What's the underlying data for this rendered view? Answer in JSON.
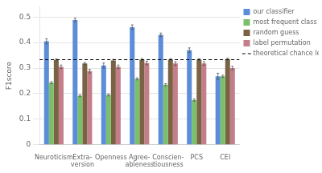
{
  "chart_data": {
    "type": "bar",
    "ylabel": "F1score",
    "categories": [
      "Neuroticism",
      "Extra-\nversion",
      "Openness",
      "Agree-\nableness",
      "Conscien-\ntiousness",
      "PCS",
      "CEI"
    ],
    "series": [
      {
        "name": "our classifier",
        "color": "#5b8dd9",
        "values": [
          0.405,
          0.488,
          0.31,
          0.46,
          0.43,
          0.37,
          0.268
        ],
        "errors": [
          0.01,
          0.007,
          0.01,
          0.009,
          0.007,
          0.009,
          0.012
        ]
      },
      {
        "name": "most frequent class",
        "color": "#7bbf6a",
        "values": [
          0.243,
          0.192,
          0.195,
          0.258,
          0.235,
          0.175,
          0.268
        ],
        "errors": [
          0.004,
          0.004,
          0.004,
          0.004,
          0.004,
          0.004,
          0.004
        ]
      },
      {
        "name": "random guess",
        "color": "#7a6244",
        "values": [
          0.332,
          0.318,
          0.33,
          0.333,
          0.333,
          0.333,
          0.335
        ],
        "errors": [
          0.004,
          0.004,
          0.004,
          0.004,
          0.004,
          0.004,
          0.004
        ]
      },
      {
        "name": "label permutation",
        "color": "#c47e8a",
        "values": [
          0.305,
          0.288,
          0.305,
          0.32,
          0.318,
          0.318,
          0.3
        ],
        "errors": [
          0.007,
          0.007,
          0.007,
          0.007,
          0.007,
          0.007,
          0.007
        ]
      }
    ],
    "hlines": [
      {
        "value": 0.333,
        "name": "theoretical chance level",
        "color": "#000000",
        "line_style": "dashed"
      }
    ],
    "ylim": [
      0.0,
      0.54
    ],
    "yticks": [
      0.0,
      0.1,
      0.2,
      0.3,
      0.4,
      0.5
    ],
    "grid": true,
    "legend": "upper right"
  }
}
